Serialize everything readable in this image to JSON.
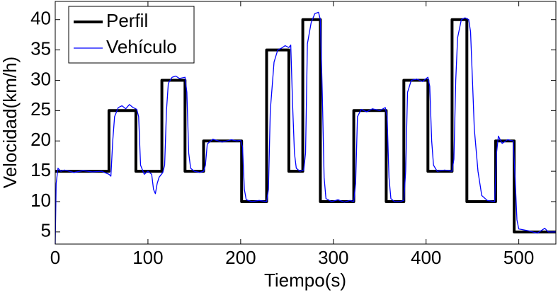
{
  "chart_data": {
    "type": "line",
    "x_label": "Tiempo(s)",
    "y_label": "Velocidad(km/h)",
    "xlim": [
      0,
      540
    ],
    "xticks": [
      0,
      100,
      200,
      300,
      400,
      500
    ],
    "ylim": [
      3,
      43
    ],
    "yticks": [
      5,
      10,
      15,
      20,
      25,
      30,
      35,
      40
    ],
    "grid": false,
    "legend": "upper left",
    "series": [
      {
        "name": "Perfil",
        "color": "#000000",
        "line_width": 4,
        "x": [
          0,
          58,
          58,
          87,
          87,
          115,
          115,
          140,
          140,
          160,
          160,
          201,
          201,
          228,
          228,
          252,
          252,
          267,
          267,
          286,
          286,
          322,
          322,
          357,
          357,
          376,
          376,
          402,
          402,
          428,
          428,
          444,
          444,
          475,
          475,
          495,
          495,
          540
        ],
        "values": [
          15,
          15,
          25,
          25,
          15,
          15,
          30,
          30,
          15,
          15,
          20,
          20,
          10,
          10,
          35,
          35,
          15,
          15,
          40,
          40,
          10,
          10,
          25,
          25,
          10,
          10,
          30,
          30,
          15,
          15,
          40,
          40,
          10,
          10,
          20,
          20,
          5,
          5
        ]
      },
      {
        "name": "Vehículo",
        "color": "#0000ff",
        "line_width": 1.3,
        "x": [
          0,
          1,
          3,
          6,
          10,
          20,
          30,
          40,
          50,
          58,
          60,
          62,
          64,
          68,
          72,
          76,
          80,
          84,
          88,
          90,
          92,
          96,
          100,
          104,
          106,
          108,
          110,
          112,
          116,
          118,
          120,
          122,
          126,
          130,
          134,
          140,
          142,
          144,
          146,
          150,
          156,
          160,
          162,
          164,
          170,
          180,
          190,
          196,
          200,
          202,
          204,
          206,
          212,
          220,
          228,
          230,
          232,
          236,
          240,
          244,
          248,
          252,
          254,
          256,
          258,
          260,
          264,
          268,
          270,
          272,
          276,
          280,
          284,
          286,
          288,
          290,
          292,
          298,
          305,
          312,
          318,
          322,
          324,
          326,
          330,
          336,
          342,
          350,
          356,
          358,
          360,
          362,
          366,
          372,
          376,
          378,
          380,
          384,
          390,
          396,
          402,
          404,
          406,
          408,
          412,
          420,
          428,
          430,
          432,
          434,
          438,
          442,
          446,
          448,
          450,
          452,
          456,
          460,
          466,
          474,
          476,
          478,
          482,
          488,
          494,
          496,
          498,
          500,
          510,
          520,
          528,
          532,
          540
        ],
        "values": [
          3,
          13,
          15.5,
          15,
          15.2,
          14.8,
          15.1,
          14.9,
          15,
          14.5,
          14.2,
          20,
          24,
          25.5,
          25.8,
          25.3,
          26,
          25.5,
          25.2,
          24,
          16,
          14.5,
          15,
          14.5,
          12,
          11.3,
          13,
          14,
          14.8,
          16,
          25,
          29.5,
          30.5,
          30.7,
          30.3,
          30.5,
          28,
          18,
          15.5,
          15,
          14.8,
          15,
          16,
          19.5,
          20.3,
          19.8,
          20.2,
          20,
          20.1,
          19,
          12,
          10.3,
          10,
          10.2,
          10,
          12,
          25,
          33,
          35,
          35.3,
          35.7,
          35.4,
          35.8,
          26,
          18,
          15.5,
          15,
          15.2,
          18,
          36,
          39.5,
          41,
          41.2,
          40,
          28,
          14,
          10.5,
          10,
          10.3,
          9.9,
          10.2,
          10,
          13,
          24,
          25.2,
          24.8,
          25.3,
          25,
          25.5,
          24,
          14,
          10.5,
          10,
          10,
          10.2,
          15,
          28,
          30,
          30.2,
          29.8,
          30.5,
          29,
          20,
          16,
          15,
          15.2,
          15,
          17,
          30,
          37,
          40,
          40.3,
          40,
          38,
          30,
          22,
          15,
          11,
          10.2,
          10,
          18,
          20.8,
          19.6,
          20.2,
          20,
          14,
          7,
          5.5,
          5.2,
          4.8,
          5.6,
          5,
          5
        ]
      }
    ]
  }
}
